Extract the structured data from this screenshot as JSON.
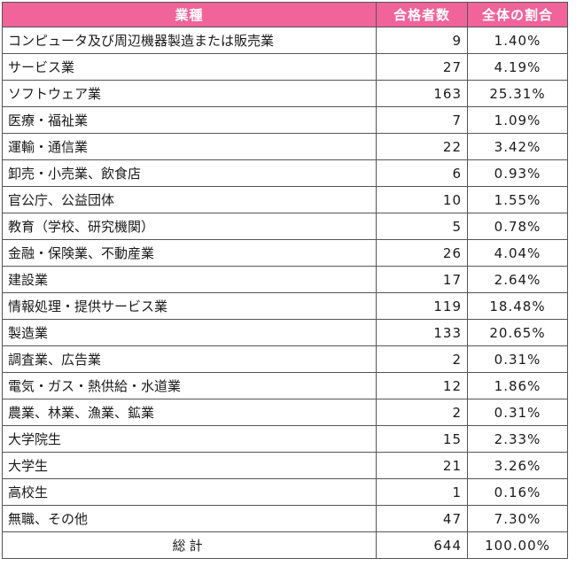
{
  "header": {
    "industry": "業種",
    "passers": "合格者数",
    "share": "全体の割合"
  },
  "rows": [
    {
      "industry": "コンピュータ及び周辺機器製造または販売業",
      "count": "9",
      "pct": "1.40%"
    },
    {
      "industry": "サービス業",
      "count": "27",
      "pct": "4.19%"
    },
    {
      "industry": "ソフトウェア業",
      "count": "163",
      "pct": "25.31%"
    },
    {
      "industry": "医療・福祉業",
      "count": "7",
      "pct": "1.09%"
    },
    {
      "industry": "運輸・通信業",
      "count": "22",
      "pct": "3.42%"
    },
    {
      "industry": "卸売・小売業、飲食店",
      "count": "6",
      "pct": "0.93%"
    },
    {
      "industry": "官公庁、公益団体",
      "count": "10",
      "pct": "1.55%"
    },
    {
      "industry": "教育（学校、研究機関）",
      "count": "5",
      "pct": "0.78%"
    },
    {
      "industry": "金融・保険業、不動産業",
      "count": "26",
      "pct": "4.04%"
    },
    {
      "industry": "建設業",
      "count": "17",
      "pct": "2.64%"
    },
    {
      "industry": "情報処理・提供サービス業",
      "count": "119",
      "pct": "18.48%"
    },
    {
      "industry": "製造業",
      "count": "133",
      "pct": "20.65%"
    },
    {
      "industry": "調査業、広告業",
      "count": "2",
      "pct": "0.31%"
    },
    {
      "industry": "電気・ガス・熱供給・水道業",
      "count": "12",
      "pct": "1.86%"
    },
    {
      "industry": "農業、林業、漁業、鉱業",
      "count": "2",
      "pct": "0.31%"
    },
    {
      "industry": "大学院生",
      "count": "15",
      "pct": "2.33%"
    },
    {
      "industry": "大学生",
      "count": "21",
      "pct": "3.26%"
    },
    {
      "industry": "高校生",
      "count": "1",
      "pct": "0.16%"
    },
    {
      "industry": "無職、その他",
      "count": "47",
      "pct": "7.30%"
    }
  ],
  "total": {
    "label": "総計",
    "count": "644",
    "pct": "100.00%"
  },
  "colors": {
    "header_bg": "#f0649a",
    "header_text": "#ffffff",
    "border": "#555555"
  }
}
